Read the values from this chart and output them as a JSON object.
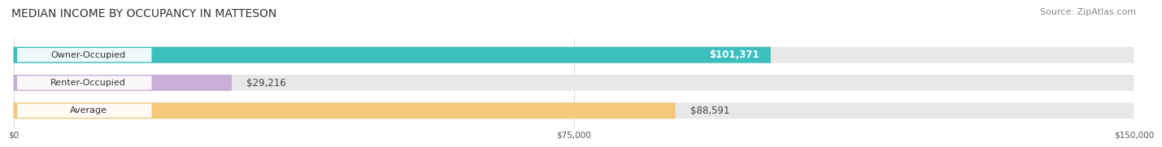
{
  "title": "MEDIAN INCOME BY OCCUPANCY IN MATTESON",
  "source": "Source: ZipAtlas.com",
  "categories": [
    "Owner-Occupied",
    "Renter-Occupied",
    "Average"
  ],
  "values": [
    101371,
    29216,
    88591
  ],
  "labels": [
    "$101,371",
    "$29,216",
    "$88,591"
  ],
  "bar_colors": [
    "#3bbfbf",
    "#c9aed6",
    "#f5c87a"
  ],
  "bar_bg_colors": [
    "#e8e8e8",
    "#e8e8e8",
    "#e8e8e8"
  ],
  "xlim": [
    0,
    150000
  ],
  "xticks": [
    0,
    75000,
    150000
  ],
  "xticklabels": [
    "$0",
    "$75,000",
    "$150,000"
  ],
  "title_fontsize": 10,
  "source_fontsize": 8,
  "label_fontsize": 8.5,
  "cat_fontsize": 8,
  "figure_bg": "#ffffff",
  "bar_height": 0.58,
  "label_inside_color": [
    "white",
    "#444444",
    "#444444"
  ],
  "label_inside": [
    true,
    false,
    false
  ]
}
